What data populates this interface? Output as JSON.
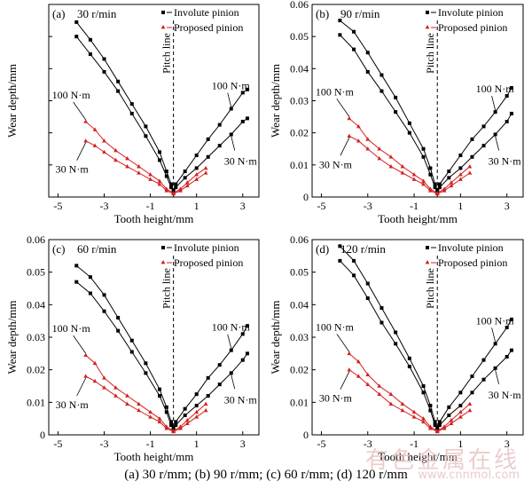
{
  "caption": "(a) 30 r/mm;  (b) 90 r/mm; (c) 60 r/mm; (d) 120 r/mm",
  "watermark": {
    "text": "有色金属在线",
    "url": "www.cnnmol.com"
  },
  "colors": {
    "involute": "#000000",
    "proposed": "#d42020",
    "axis": "#000000"
  },
  "chart_data": [
    {
      "type": "line",
      "panel": "(a)",
      "speed": "30 r/min",
      "xlabel": "Tooth height/mm",
      "ylabel": "Wear depth/mm",
      "xlim": [
        -5.4,
        3.7
      ],
      "ylim": [
        0,
        0.06
      ],
      "xticks": [
        -5,
        -3,
        -1,
        1,
        3
      ],
      "yticks": [
        0,
        0.01,
        0.02,
        0.03,
        0.04,
        0.05,
        0.06
      ],
      "ytick_labels": [],
      "pitch_line": {
        "x": 0,
        "label": "Pitch line"
      },
      "legend": {
        "position": "top-right",
        "entries": [
          "Involute pinion",
          "Proposed pinion"
        ]
      },
      "annotations": {
        "high_load": "100 N·m",
        "low_load": "30 N·m"
      },
      "series": [
        {
          "name": "Involute pinion",
          "load": "100 N·m",
          "marker": "square",
          "x": [
            -4.2,
            -3.6,
            -3.0,
            -2.4,
            -1.8,
            -1.2,
            -0.6,
            -0.3,
            -0.1,
            0.0,
            0.1,
            0.5,
            1.0,
            1.5,
            2.0,
            2.5,
            3.0,
            3.2
          ],
          "y": [
            0.0545,
            0.049,
            0.043,
            0.036,
            0.029,
            0.022,
            0.014,
            0.008,
            0.004,
            0.002,
            0.004,
            0.008,
            0.013,
            0.018,
            0.0225,
            0.0275,
            0.0325,
            0.0335
          ]
        },
        {
          "name": "Involute pinion",
          "load": "30 N·m",
          "marker": "square",
          "x": [
            -4.2,
            -3.6,
            -3.0,
            -2.4,
            -1.8,
            -1.2,
            -0.6,
            -0.3,
            -0.1,
            0.0,
            0.1,
            0.5,
            1.0,
            1.5,
            2.0,
            2.5,
            3.0,
            3.2
          ],
          "y": [
            0.05,
            0.0445,
            0.039,
            0.033,
            0.026,
            0.019,
            0.0115,
            0.0065,
            0.003,
            0.0015,
            0.003,
            0.006,
            0.009,
            0.0125,
            0.016,
            0.0195,
            0.0235,
            0.0245
          ]
        },
        {
          "name": "Proposed pinion",
          "load": "100 N·m",
          "marker": "triangle",
          "x": [
            -3.8,
            -3.4,
            -3.0,
            -2.5,
            -2.0,
            -1.5,
            -1.0,
            -0.6,
            -0.3,
            0.0,
            0.3,
            0.6,
            1.0,
            1.4
          ],
          "y": [
            0.0235,
            0.021,
            0.0175,
            0.0145,
            0.012,
            0.0095,
            0.007,
            0.005,
            0.0025,
            0.0012,
            0.0025,
            0.0045,
            0.007,
            0.009
          ]
        },
        {
          "name": "Proposed pinion",
          "load": "30 N·m",
          "marker": "triangle",
          "x": [
            -3.8,
            -3.4,
            -3.0,
            -2.5,
            -2.0,
            -1.5,
            -1.0,
            -0.6,
            -0.3,
            0.0,
            0.3,
            0.6,
            1.0,
            1.4
          ],
          "y": [
            0.0175,
            0.016,
            0.014,
            0.0115,
            0.0095,
            0.0075,
            0.0055,
            0.004,
            0.002,
            0.001,
            0.002,
            0.0035,
            0.0055,
            0.0075
          ]
        }
      ]
    },
    {
      "type": "line",
      "panel": "(b)",
      "speed": "90 r/min",
      "xlabel": "Tooth height/mm",
      "ylabel": "Wear depth/mm",
      "xlim": [
        -5.4,
        3.7
      ],
      "ylim": [
        0,
        0.06
      ],
      "xticks": [
        -5,
        -3,
        -1,
        1,
        3
      ],
      "yticks": [
        0,
        0.01,
        0.02,
        0.03,
        0.04,
        0.05,
        0.06
      ],
      "ytick_labels": [
        "0",
        "0.01",
        "0.02",
        "0.03",
        "0.04",
        "0.05",
        "0.06"
      ],
      "pitch_line": {
        "x": 0,
        "label": "Pitch line"
      },
      "legend": {
        "position": "top-right",
        "entries": [
          "Involute pinion",
          "Proposed pinion"
        ]
      },
      "annotations": {
        "high_load": "100 N·m",
        "low_load": "30 N·m"
      },
      "series": [
        {
          "name": "Involute pinion",
          "load": "100 N·m",
          "marker": "square",
          "x": [
            -4.2,
            -3.6,
            -3.0,
            -2.4,
            -1.8,
            -1.2,
            -0.6,
            -0.3,
            -0.1,
            0.0,
            0.1,
            0.5,
            1.0,
            1.5,
            2.0,
            2.5,
            3.0,
            3.2
          ],
          "y": [
            0.055,
            0.0515,
            0.045,
            0.038,
            0.031,
            0.023,
            0.015,
            0.009,
            0.004,
            0.002,
            0.004,
            0.008,
            0.013,
            0.018,
            0.022,
            0.0265,
            0.0315,
            0.034
          ]
        },
        {
          "name": "Involute pinion",
          "load": "30 N·m",
          "marker": "square",
          "x": [
            -4.2,
            -3.6,
            -3.0,
            -2.4,
            -1.8,
            -1.2,
            -0.6,
            -0.3,
            -0.1,
            0.0,
            0.1,
            0.5,
            1.0,
            1.5,
            2.0,
            2.5,
            3.0,
            3.2
          ],
          "y": [
            0.0505,
            0.046,
            0.039,
            0.033,
            0.0265,
            0.02,
            0.0125,
            0.007,
            0.003,
            0.0015,
            0.003,
            0.006,
            0.009,
            0.0125,
            0.016,
            0.0195,
            0.0235,
            0.026
          ]
        },
        {
          "name": "Proposed pinion",
          "load": "100 N·m",
          "marker": "triangle",
          "x": [
            -3.8,
            -3.4,
            -3.0,
            -2.5,
            -2.0,
            -1.5,
            -1.0,
            -0.6,
            -0.3,
            0.0,
            0.3,
            0.6,
            1.0,
            1.4
          ],
          "y": [
            0.0245,
            0.022,
            0.018,
            0.015,
            0.0125,
            0.0095,
            0.007,
            0.005,
            0.0025,
            0.0012,
            0.0025,
            0.0045,
            0.007,
            0.0095
          ]
        },
        {
          "name": "Proposed pinion",
          "load": "30 N·m",
          "marker": "triangle",
          "x": [
            -3.8,
            -3.4,
            -3.0,
            -2.5,
            -2.0,
            -1.5,
            -1.0,
            -0.6,
            -0.3,
            0.0,
            0.3,
            0.6,
            1.0,
            1.4
          ],
          "y": [
            0.019,
            0.0175,
            0.015,
            0.012,
            0.0095,
            0.0075,
            0.0055,
            0.004,
            0.002,
            0.001,
            0.002,
            0.0035,
            0.0055,
            0.0075
          ]
        }
      ]
    },
    {
      "type": "line",
      "panel": "(c)",
      "speed": "60 r/min",
      "xlabel": "Tooth height/mm",
      "ylabel": "Wear depth/mm",
      "xlim": [
        -5.4,
        3.7
      ],
      "ylim": [
        0,
        0.06
      ],
      "xticks": [
        -5,
        -3,
        -1,
        1,
        3
      ],
      "yticks": [
        0,
        0.01,
        0.02,
        0.03,
        0.04,
        0.05,
        0.06
      ],
      "ytick_labels": [
        "0",
        "0.01",
        "0.02",
        "0.03",
        "0.04",
        "0.05",
        "0.06"
      ],
      "pitch_line": {
        "x": 0,
        "label": "Pitch line"
      },
      "legend": {
        "position": "top-right",
        "entries": [
          "Involute pinion",
          "Proposed pinion"
        ]
      },
      "annotations": {
        "high_load": "100 N·m",
        "low_load": "30 N·m"
      },
      "series": [
        {
          "name": "Involute pinion",
          "load": "100 N·m",
          "marker": "square",
          "x": [
            -4.2,
            -3.6,
            -3.0,
            -2.4,
            -1.8,
            -1.2,
            -0.6,
            -0.3,
            -0.1,
            0.0,
            0.1,
            0.5,
            1.0,
            1.5,
            2.0,
            2.5,
            3.0,
            3.2
          ],
          "y": [
            0.052,
            0.0485,
            0.043,
            0.036,
            0.029,
            0.022,
            0.014,
            0.0085,
            0.004,
            0.002,
            0.004,
            0.008,
            0.0125,
            0.0175,
            0.0215,
            0.026,
            0.031,
            0.0335
          ]
        },
        {
          "name": "Involute pinion",
          "load": "30 N·m",
          "marker": "square",
          "x": [
            -4.2,
            -3.6,
            -3.0,
            -2.4,
            -1.8,
            -1.2,
            -0.6,
            -0.3,
            -0.1,
            0.0,
            0.1,
            0.5,
            1.0,
            1.5,
            2.0,
            2.5,
            3.0,
            3.2
          ],
          "y": [
            0.047,
            0.0435,
            0.038,
            0.032,
            0.0255,
            0.019,
            0.012,
            0.007,
            0.003,
            0.0015,
            0.003,
            0.006,
            0.009,
            0.012,
            0.0155,
            0.019,
            0.023,
            0.025
          ]
        },
        {
          "name": "Proposed pinion",
          "load": "100 N·m",
          "marker": "triangle",
          "x": [
            -3.8,
            -3.4,
            -3.0,
            -2.5,
            -2.0,
            -1.5,
            -1.0,
            -0.6,
            -0.3,
            0.0,
            0.3,
            0.6,
            1.0,
            1.4
          ],
          "y": [
            0.0245,
            0.022,
            0.0175,
            0.0145,
            0.012,
            0.0095,
            0.007,
            0.005,
            0.0025,
            0.0012,
            0.0025,
            0.0045,
            0.007,
            0.0095
          ]
        },
        {
          "name": "Proposed pinion",
          "load": "30 N·m",
          "marker": "triangle",
          "x": [
            -3.8,
            -3.4,
            -3.0,
            -2.5,
            -2.0,
            -1.5,
            -1.0,
            -0.6,
            -0.3,
            0.0,
            0.3,
            0.6,
            1.0,
            1.4
          ],
          "y": [
            0.018,
            0.0165,
            0.0145,
            0.012,
            0.0095,
            0.0075,
            0.0055,
            0.004,
            0.002,
            0.001,
            0.002,
            0.0035,
            0.0055,
            0.0075
          ]
        }
      ]
    },
    {
      "type": "line",
      "panel": "(d)",
      "speed": "120 r/min",
      "xlabel": "Tooth height/mm",
      "ylabel": "Wear depth/mm",
      "xlim": [
        -5.4,
        3.7
      ],
      "ylim": [
        0,
        0.06
      ],
      "xticks": [
        -5,
        -3,
        -1,
        1,
        3
      ],
      "yticks": [
        0,
        0.01,
        0.02,
        0.03,
        0.04,
        0.05,
        0.06
      ],
      "ytick_labels": [
        "0",
        "0.01",
        "0.02",
        "0.03",
        "0.04",
        "0.05",
        "0.06"
      ],
      "pitch_line": {
        "x": 0,
        "label": "Pitch line"
      },
      "legend": {
        "position": "top-right",
        "entries": [
          "Involute pinion",
          "Proposed pinion"
        ]
      },
      "annotations": {
        "high_load": "100 N·m",
        "low_load": "30 N·m"
      },
      "series": [
        {
          "name": "Involute pinion",
          "load": "100 N·m",
          "marker": "square",
          "x": [
            -4.2,
            -3.6,
            -3.0,
            -2.4,
            -1.8,
            -1.2,
            -0.6,
            -0.3,
            -0.1,
            0.0,
            0.1,
            0.5,
            1.0,
            1.5,
            2.0,
            2.5,
            3.0,
            3.2
          ],
          "y": [
            0.058,
            0.0535,
            0.0465,
            0.039,
            0.0315,
            0.0235,
            0.015,
            0.009,
            0.004,
            0.002,
            0.004,
            0.0085,
            0.013,
            0.018,
            0.023,
            0.028,
            0.033,
            0.0355
          ]
        },
        {
          "name": "Involute pinion",
          "load": "30 N·m",
          "marker": "square",
          "x": [
            -4.2,
            -3.6,
            -3.0,
            -2.4,
            -1.8,
            -1.2,
            -0.6,
            -0.3,
            -0.1,
            0.0,
            0.1,
            0.5,
            1.0,
            1.5,
            2.0,
            2.5,
            3.0,
            3.2
          ],
          "y": [
            0.0535,
            0.049,
            0.042,
            0.0345,
            0.028,
            0.021,
            0.013,
            0.0075,
            0.003,
            0.0015,
            0.003,
            0.006,
            0.009,
            0.013,
            0.017,
            0.0205,
            0.024,
            0.026
          ]
        },
        {
          "name": "Proposed pinion",
          "load": "100 N·m",
          "marker": "triangle",
          "x": [
            -3.8,
            -3.4,
            -3.0,
            -2.5,
            -2.0,
            -1.5,
            -1.0,
            -0.6,
            -0.3,
            0.0,
            0.3,
            0.6,
            1.0,
            1.4
          ],
          "y": [
            0.025,
            0.0225,
            0.0185,
            0.015,
            0.0125,
            0.0095,
            0.007,
            0.005,
            0.0025,
            0.0012,
            0.0025,
            0.0045,
            0.007,
            0.0095
          ]
        },
        {
          "name": "Proposed pinion",
          "load": "30 N·m",
          "marker": "triangle",
          "x": [
            -3.8,
            -3.4,
            -3.0,
            -2.5,
            -2.0,
            -1.5,
            -1.0,
            -0.6,
            -0.3,
            0.0,
            0.3,
            0.6,
            1.0,
            1.4
          ],
          "y": [
            0.02,
            0.018,
            0.0155,
            0.0125,
            0.0095,
            0.0075,
            0.0055,
            0.004,
            0.002,
            0.001,
            0.002,
            0.0035,
            0.0055,
            0.0075
          ]
        }
      ]
    }
  ]
}
